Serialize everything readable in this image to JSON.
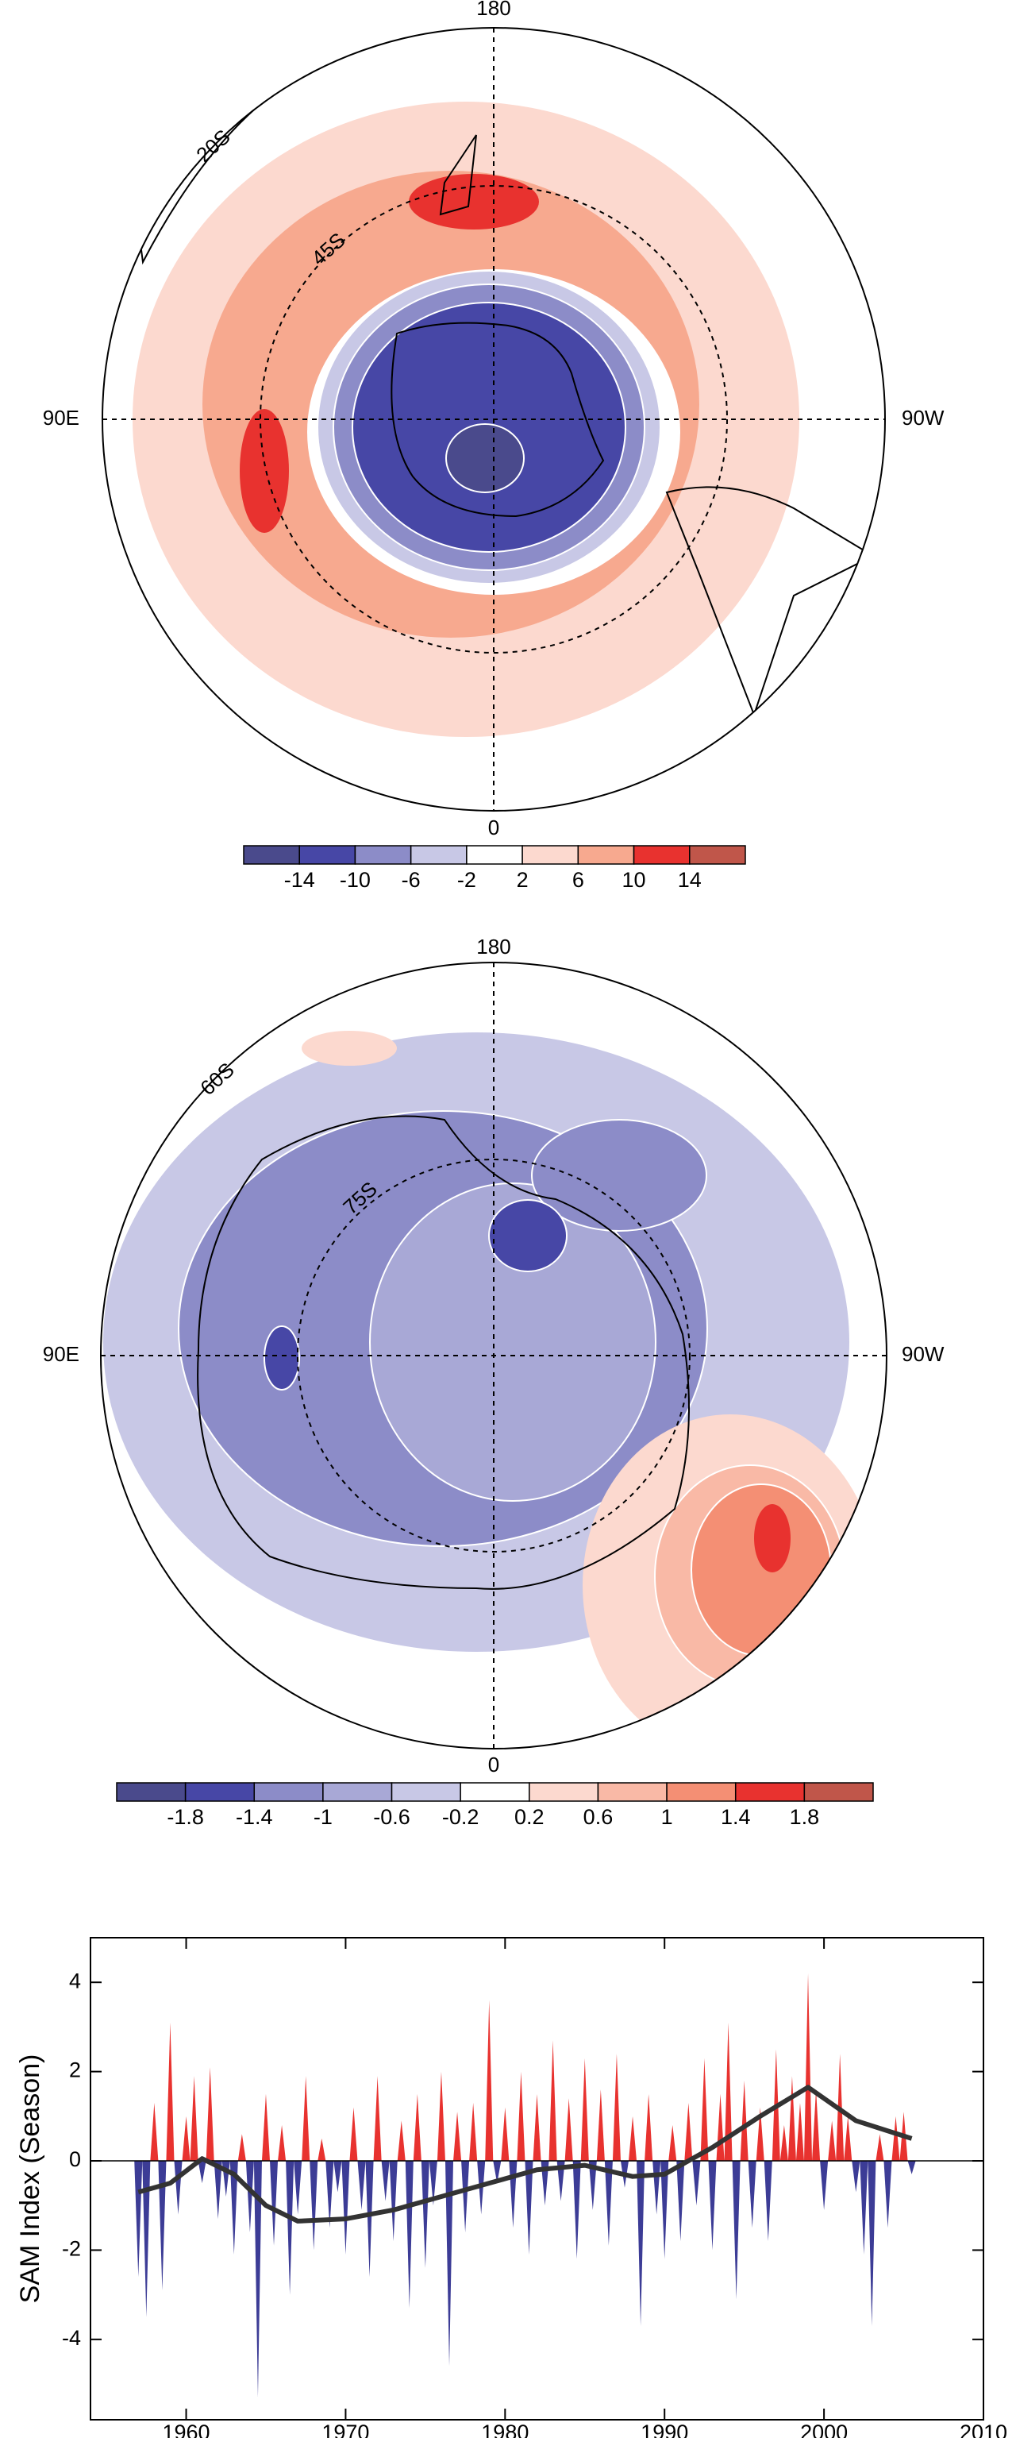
{
  "chart_data": [
    {
      "type": "polar-map",
      "labels": {
        "top": "180",
        "bottom": "0",
        "left": "90E",
        "right": "90W"
      },
      "lat_labels": [
        "20S",
        "45S"
      ],
      "colorbar": {
        "colors": [
          "#4a4a8c",
          "#4747a6",
          "#8c8cc8",
          "#c8c8e6",
          "#ffffff",
          "#fcd9cf",
          "#f7a98f",
          "#e8322f",
          "#c0564a"
        ],
        "ticks": [
          -14,
          -10,
          -6,
          -2,
          2,
          6,
          10,
          14
        ]
      }
    },
    {
      "type": "polar-map",
      "labels": {
        "top": "180",
        "bottom": "0",
        "left": "90E",
        "right": "90W"
      },
      "lat_labels": [
        "60S",
        "75S"
      ],
      "colorbar": {
        "colors": [
          "#4a4a8c",
          "#4747a6",
          "#8c8cc8",
          "#a8a8d6",
          "#c8c8e6",
          "#ffffff",
          "#fcd9cf",
          "#f9b9a6",
          "#f48f74",
          "#e8322f",
          "#c0564a"
        ],
        "ticks": [
          -1.8,
          -1.4,
          -1,
          -0.6,
          -0.2,
          0.2,
          0.6,
          1,
          1.4,
          1.8
        ]
      }
    },
    {
      "type": "bar",
      "ylabel": "SAM Index (Season)",
      "pos_color": "#e8322f",
      "neg_color": "#3c3c96",
      "xlim": [
        1954,
        2010
      ],
      "ylim": [
        -5.8,
        5
      ],
      "xticks": [
        1960,
        1970,
        1980,
        1990,
        2000,
        2010
      ],
      "yticks": [
        -4,
        -2,
        0,
        2,
        4
      ],
      "x": [
        1957,
        1957.5,
        1958,
        1958.5,
        1959,
        1959.5,
        1960,
        1960.5,
        1961,
        1961.5,
        1962,
        1962.5,
        1963,
        1963.5,
        1964,
        1964.5,
        1965,
        1965.5,
        1966,
        1966.5,
        1967,
        1967.5,
        1968,
        1968.5,
        1969,
        1969.5,
        1970,
        1970.5,
        1971,
        1971.5,
        1972,
        1972.5,
        1973,
        1973.5,
        1974,
        1974.5,
        1975,
        1975.5,
        1976,
        1976.5,
        1977,
        1977.5,
        1978,
        1978.5,
        1979,
        1979.5,
        1980,
        1980.5,
        1981,
        1981.5,
        1982,
        1982.5,
        1983,
        1983.5,
        1984,
        1984.5,
        1985,
        1985.5,
        1986,
        1986.5,
        1987,
        1987.5,
        1988,
        1988.5,
        1989,
        1989.5,
        1990,
        1990.5,
        1991,
        1991.5,
        1992,
        1992.5,
        1993,
        1993.5,
        1994,
        1994.5,
        1995,
        1995.5,
        1996,
        1996.5,
        1997,
        1997.5,
        1998,
        1998.5,
        1999,
        1999.5,
        2000,
        2000.5,
        2001,
        2001.5,
        2002,
        2002.5,
        2003,
        2003.5,
        2004,
        2004.5,
        2005,
        2005.5
      ],
      "values": [
        -2.6,
        -3.5,
        1.3,
        -2.9,
        3.1,
        -1.2,
        1.0,
        1.9,
        -0.5,
        2.1,
        -1.3,
        -0.8,
        -2.1,
        0.6,
        -1.6,
        -5.3,
        1.5,
        -1.9,
        0.8,
        -3.0,
        -1.2,
        1.9,
        -2.0,
        0.5,
        -1.5,
        -0.7,
        -2.1,
        1.2,
        -1.1,
        -2.6,
        1.9,
        -0.9,
        -1.8,
        0.9,
        -3.3,
        1.5,
        -2.4,
        -1.0,
        2.0,
        -4.6,
        1.1,
        -1.6,
        1.3,
        -1.2,
        3.6,
        -0.5,
        1.2,
        -1.5,
        2.0,
        -2.1,
        1.5,
        -1.0,
        2.7,
        -0.9,
        1.4,
        -2.2,
        2.3,
        -1.1,
        1.6,
        -1.9,
        2.4,
        -0.6,
        1.0,
        -3.7,
        1.5,
        -1.2,
        -2.2,
        0.8,
        -1.8,
        1.3,
        -1.0,
        2.3,
        -2.0,
        1.5,
        3.1,
        -3.1,
        1.8,
        -1.5,
        1.2,
        -1.8,
        2.5,
        0.8,
        1.9,
        1.3,
        4.2,
        1.6,
        -1.1,
        0.9,
        2.4,
        1.0,
        -0.7,
        -2.1,
        -3.7,
        0.6,
        -1.5,
        1.0,
        1.1,
        -0.3
      ],
      "smooth": {
        "color": "#333333",
        "x": [
          1957,
          1959,
          1961,
          1963,
          1965,
          1967,
          1970,
          1973,
          1976,
          1979,
          1982,
          1985,
          1988,
          1990,
          1993,
          1996,
          1999,
          2002,
          2005.5
        ],
        "values": [
          -0.7,
          -0.5,
          0.05,
          -0.3,
          -1.0,
          -1.35,
          -1.3,
          -1.1,
          -0.8,
          -0.5,
          -0.2,
          -0.1,
          -0.35,
          -0.3,
          0.3,
          1.0,
          1.65,
          0.9,
          0.5
        ]
      }
    }
  ]
}
